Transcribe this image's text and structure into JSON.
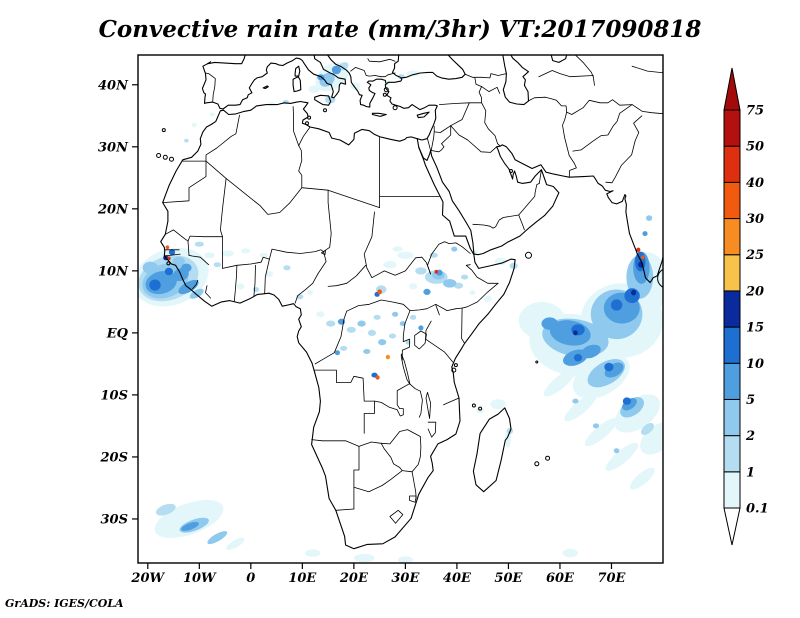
{
  "title": "Convective rain rate (mm/3hr) VT:2017090818",
  "credit": "GrADS: IGES/COLA",
  "chart_data": {
    "type": "heatmap",
    "title": "Convective rain rate (mm/3hr) VT:2017090818",
    "variable": "Convective rain rate",
    "units": "mm/3hr",
    "valid_time": "2017090818",
    "grid": "off",
    "legend_position": "right colorbar",
    "x_axis": {
      "tick_labels": [
        "20W",
        "10W",
        "0",
        "10E",
        "20E",
        "30E",
        "40E",
        "50E",
        "60E",
        "70E"
      ],
      "tick_lons": [
        -20,
        -10,
        0,
        10,
        20,
        30,
        40,
        50,
        60,
        70
      ],
      "lon_range": [
        -21.9,
        80.0
      ]
    },
    "y_axis": {
      "tick_labels": [
        "40N",
        "30N",
        "20N",
        "10N",
        "EQ",
        "10S",
        "20S",
        "30S"
      ],
      "tick_lats": [
        40,
        30,
        20,
        10,
        0,
        -10,
        -20,
        -30
      ],
      "lat_range": [
        -37.1,
        44.8
      ]
    },
    "colorbar": {
      "levels": [
        0.1,
        1,
        2,
        5,
        10,
        15,
        20,
        25,
        30,
        40,
        50,
        75
      ],
      "segment_colors": [
        "#E3F7FA",
        "#B4DDF2",
        "#8FC9EE",
        "#4F9FE0",
        "#1E6FD2",
        "#0A2B9D",
        "#F7C34A",
        "#F78C22",
        "#F25A10",
        "#DE2F10",
        "#B51010"
      ],
      "arrow_top_color": "#A40A0A",
      "arrow_bottom_color": "#FFFFFF"
    },
    "rain_features": [
      {
        "region": "Atlantic off Senegal/Guinea coast",
        "approx": "20W-10W, 5N-13N",
        "max_level": "30-50 specks near Senegal coast, core 5-15"
      },
      {
        "region": "Sahel scattered cells",
        "approx": "12W-8E, 7N-15N",
        "max_level": "1-5"
      },
      {
        "region": "Southern Italy / Adriatic / Ionian",
        "approx": "12E-20E, 37N-43N",
        "max_level": "2-5"
      },
      {
        "region": "South Sudan / Ethiopia",
        "approx": "24E-41E, 6N-13N",
        "max_level": "5-40 (isolated 40 speck ~36E,10N and ~25E,6.5N)"
      },
      {
        "region": "Congo basin scattered",
        "approx": "13E-33E, 4N-8S",
        "max_level": "2-30 isolated specks"
      },
      {
        "region": "Arabian Sea / SW Indian monsoon area incl. India west coast",
        "approx": "50E-80E, 12S-15N",
        "max_level": "10-15 cores, 30-40 speck near 75E,13N"
      },
      {
        "region": "SE Indian Ocean diagonal bands",
        "approx": "55E-80E, 5S-25S",
        "max_level": "0.1-5"
      },
      {
        "region": "South Atlantic streak",
        "approx": "18W-2W, 27S-35S",
        "max_level": "2-5 core"
      },
      {
        "region": "Black Sea / Bosphorus specks",
        "approx": "26E-32E, 40N-42N",
        "max_level": "1"
      }
    ],
    "rain_cells_format": "[lon, lat, rx_deg, ry_deg, rotation_deg, level_index] where level_index maps to colorbar.segment_colors (0 = 0.1-1 ... 10 = 50-75)",
    "rain_cells": [
      [
        -15.5,
        9.0,
        7.5,
        4.5,
        -20,
        0
      ],
      [
        -16.0,
        8.8,
        6.0,
        3.5,
        -20,
        1
      ],
      [
        -16.6,
        8.4,
        4.6,
        2.7,
        -20,
        2
      ],
      [
        -17.4,
        8.1,
        3.1,
        1.8,
        -15,
        3
      ],
      [
        -13.6,
        9.4,
        1.6,
        1.0,
        -20,
        3
      ],
      [
        -18.6,
        7.7,
        1.1,
        0.9,
        0,
        4
      ],
      [
        -15.9,
        9.9,
        0.8,
        0.6,
        0,
        4
      ],
      [
        -12.1,
        7.4,
        2.2,
        0.8,
        -30,
        3
      ],
      [
        -10.5,
        6.3,
        1.5,
        0.6,
        -30,
        2
      ],
      [
        -19.5,
        10.5,
        1.5,
        1.0,
        0,
        2
      ],
      [
        -14.0,
        11.5,
        1.2,
        0.8,
        0,
        2
      ],
      [
        -12.5,
        10.5,
        1.0,
        0.7,
        0,
        3
      ],
      [
        -16.2,
        13.8,
        0.35,
        0.3,
        0,
        8
      ],
      [
        -15.9,
        12.0,
        0.35,
        0.3,
        0,
        9
      ],
      [
        -16.5,
        12.1,
        0.5,
        0.4,
        0,
        5
      ],
      [
        -15.3,
        13.0,
        0.6,
        0.5,
        0,
        4
      ],
      [
        -8.0,
        12.5,
        1.0,
        0.5,
        0,
        0
      ],
      [
        -4.5,
        12.8,
        1.2,
        0.5,
        0,
        0
      ],
      [
        -1.0,
        13.2,
        0.9,
        0.4,
        0,
        0
      ],
      [
        2.5,
        12.5,
        0.8,
        0.4,
        0,
        0
      ],
      [
        -10.0,
        14.3,
        0.9,
        0.4,
        0,
        1
      ],
      [
        -6.5,
        11.0,
        0.7,
        0.4,
        0,
        1
      ],
      [
        3.5,
        9.5,
        0.8,
        0.5,
        0,
        0
      ],
      [
        7.0,
        10.5,
        0.7,
        0.4,
        0,
        1
      ],
      [
        -2.0,
        7.5,
        0.8,
        0.5,
        0,
        0
      ],
      [
        1.0,
        7.0,
        0.6,
        0.4,
        0,
        1
      ],
      [
        -11.0,
        33.5,
        0.5,
        0.35,
        0,
        0
      ],
      [
        -12.5,
        31.0,
        0.45,
        0.3,
        0,
        1
      ],
      [
        -7.5,
        35.2,
        0.5,
        0.3,
        0,
        0
      ],
      [
        15.8,
        41.3,
        3.6,
        2.0,
        -35,
        0
      ],
      [
        14.8,
        40.8,
        1.6,
        1.0,
        -35,
        2
      ],
      [
        16.6,
        42.4,
        0.9,
        0.7,
        0,
        3
      ],
      [
        13.6,
        41.2,
        0.7,
        0.5,
        0,
        3
      ],
      [
        15.4,
        37.6,
        1.0,
        0.6,
        0,
        1
      ],
      [
        12.3,
        39.3,
        1.1,
        0.6,
        0,
        0
      ],
      [
        20.3,
        39.8,
        1.0,
        0.6,
        0,
        0
      ],
      [
        18.0,
        43.0,
        1.0,
        0.6,
        -30,
        1
      ],
      [
        29.2,
        41.3,
        0.7,
        0.4,
        0,
        1
      ],
      [
        31.5,
        41.8,
        1.3,
        0.5,
        0,
        0
      ],
      [
        26.5,
        40.3,
        0.6,
        0.4,
        0,
        0
      ],
      [
        6.8,
        37.2,
        0.6,
        0.35,
        0,
        1
      ],
      [
        4.0,
        36.9,
        0.7,
        0.3,
        0,
        0
      ],
      [
        27.0,
        11.0,
        1.3,
        0.6,
        0,
        0
      ],
      [
        30.0,
        12.5,
        1.6,
        0.6,
        0,
        0
      ],
      [
        33.0,
        10.0,
        1.1,
        0.6,
        0,
        1
      ],
      [
        36.0,
        9.0,
        2.2,
        1.1,
        0,
        1
      ],
      [
        36.4,
        9.3,
        1.2,
        0.7,
        0,
        2
      ],
      [
        38.6,
        8.0,
        1.3,
        0.7,
        0,
        2
      ],
      [
        40.3,
        7.6,
        0.9,
        0.5,
        0,
        1
      ],
      [
        36.6,
        9.7,
        0.6,
        0.5,
        0,
        3
      ],
      [
        34.2,
        6.6,
        0.7,
        0.5,
        0,
        3
      ],
      [
        31.5,
        7.5,
        0.8,
        0.5,
        0,
        0
      ],
      [
        25.3,
        7.0,
        1.0,
        0.7,
        0,
        1
      ],
      [
        25.0,
        6.6,
        0.45,
        0.4,
        0,
        8
      ],
      [
        24.5,
        6.2,
        0.5,
        0.4,
        0,
        4
      ],
      [
        28.5,
        13.5,
        1.0,
        0.4,
        0,
        0
      ],
      [
        35.5,
        12.5,
        0.8,
        0.4,
        0,
        1
      ],
      [
        39.5,
        13.5,
        0.6,
        0.4,
        0,
        2
      ],
      [
        41.5,
        9.0,
        0.7,
        0.4,
        0,
        1
      ],
      [
        43.0,
        6.5,
        0.6,
        0.4,
        0,
        0
      ],
      [
        36.0,
        9.85,
        0.35,
        0.3,
        0,
        9
      ],
      [
        13.5,
        3.0,
        0.8,
        0.5,
        0,
        0
      ],
      [
        15.5,
        1.5,
        0.9,
        0.5,
        0,
        1
      ],
      [
        17.6,
        1.8,
        0.7,
        0.5,
        0,
        3
      ],
      [
        19.5,
        0.5,
        0.9,
        0.5,
        0,
        1
      ],
      [
        21.5,
        1.5,
        0.8,
        0.5,
        0,
        2
      ],
      [
        23.5,
        0.0,
        0.8,
        0.5,
        0,
        1
      ],
      [
        25.5,
        -1.5,
        0.8,
        0.5,
        0,
        2
      ],
      [
        27.5,
        -0.5,
        0.7,
        0.4,
        0,
        1
      ],
      [
        24.5,
        2.5,
        0.7,
        0.4,
        0,
        1
      ],
      [
        28.0,
        3.0,
        0.6,
        0.4,
        0,
        2
      ],
      [
        22.5,
        -3.0,
        0.7,
        0.4,
        0,
        2
      ],
      [
        26.6,
        -3.9,
        0.4,
        0.35,
        0,
        7
      ],
      [
        24.6,
        -7.2,
        0.4,
        0.35,
        0,
        8
      ],
      [
        24.0,
        -6.8,
        0.6,
        0.4,
        0,
        4
      ],
      [
        18.0,
        -2.5,
        0.7,
        0.4,
        0,
        1
      ],
      [
        16.8,
        -3.2,
        0.5,
        0.4,
        0,
        3
      ],
      [
        29.5,
        1.5,
        0.6,
        0.4,
        0,
        2
      ],
      [
        31.5,
        2.5,
        0.6,
        0.4,
        0,
        1
      ],
      [
        33.0,
        0.8,
        0.5,
        0.4,
        0,
        3
      ],
      [
        30.5,
        -1.5,
        0.5,
        0.4,
        0,
        1
      ],
      [
        9.5,
        5.8,
        0.7,
        0.4,
        0,
        1
      ],
      [
        11.5,
        6.5,
        0.6,
        0.4,
        0,
        0
      ],
      [
        56.5,
        2.0,
        4.5,
        3.0,
        0,
        0
      ],
      [
        63.0,
        -2.0,
        9.0,
        5.0,
        10,
        0
      ],
      [
        72.0,
        2.0,
        8.0,
        6.0,
        0,
        0
      ],
      [
        77.0,
        8.0,
        4.0,
        5.0,
        0,
        0
      ],
      [
        68.0,
        -7.0,
        6.0,
        3.0,
        -30,
        0
      ],
      [
        63.0,
        -0.8,
        6.5,
        3.0,
        10,
        2
      ],
      [
        71.0,
        3.0,
        5.0,
        4.0,
        0,
        2
      ],
      [
        75.5,
        9.0,
        2.6,
        3.5,
        0,
        2
      ],
      [
        69.0,
        -6.5,
        4.0,
        1.8,
        -30,
        2
      ],
      [
        62.0,
        0.0,
        4.0,
        2.0,
        10,
        3
      ],
      [
        72.0,
        4.0,
        3.5,
        2.5,
        0,
        3
      ],
      [
        75.8,
        10.5,
        1.6,
        2.6,
        0,
        3
      ],
      [
        66.0,
        -3.0,
        2.0,
        1.0,
        -20,
        3
      ],
      [
        70.5,
        -6.0,
        2.0,
        1.0,
        -30,
        3
      ],
      [
        58.0,
        1.5,
        1.6,
        1.0,
        0,
        3
      ],
      [
        63.5,
        0.5,
        1.3,
        0.9,
        0,
        4
      ],
      [
        74.0,
        6.0,
        1.5,
        1.2,
        0,
        4
      ],
      [
        75.6,
        11.5,
        1.0,
        1.6,
        0,
        4
      ],
      [
        71.0,
        4.5,
        1.1,
        0.9,
        0,
        4
      ],
      [
        69.5,
        -5.5,
        0.9,
        0.7,
        0,
        4
      ],
      [
        75.7,
        11.0,
        0.5,
        0.5,
        0,
        5
      ],
      [
        63.0,
        0.0,
        0.45,
        0.4,
        0,
        5
      ],
      [
        74.3,
        6.5,
        0.5,
        0.45,
        0,
        5
      ],
      [
        75.2,
        13.4,
        0.4,
        0.35,
        0,
        9
      ],
      [
        76.1,
        12.2,
        0.35,
        0.3,
        0,
        8
      ],
      [
        77.3,
        18.5,
        0.6,
        0.45,
        0,
        2
      ],
      [
        76.5,
        16.0,
        0.5,
        0.4,
        0,
        3
      ],
      [
        73.5,
        -11.5,
        1.6,
        0.8,
        -35,
        3
      ],
      [
        74.0,
        -12.0,
        2.6,
        1.3,
        -35,
        2
      ],
      [
        75.0,
        -13.0,
        5.0,
        2.4,
        -35,
        0
      ],
      [
        73.0,
        -11.0,
        0.8,
        0.6,
        0,
        4
      ],
      [
        79.0,
        -17.0,
        4.0,
        2.0,
        -40,
        0
      ],
      [
        77.0,
        -15.5,
        1.5,
        0.7,
        -40,
        1
      ],
      [
        48.5,
        11.5,
        1.2,
        0.6,
        0,
        0
      ],
      [
        51.0,
        10.8,
        0.8,
        0.5,
        0,
        1
      ],
      [
        46.0,
        5.5,
        0.8,
        0.5,
        0,
        0
      ],
      [
        43.5,
        13.0,
        0.6,
        0.4,
        0,
        0
      ],
      [
        60.0,
        -8.0,
        4.0,
        1.0,
        -40,
        0
      ],
      [
        64.0,
        -12.0,
        4.0,
        1.0,
        -40,
        0
      ],
      [
        68.0,
        -16.0,
        4.0,
        1.0,
        -40,
        0
      ],
      [
        72.0,
        -20.0,
        4.0,
        1.0,
        -40,
        0
      ],
      [
        76.0,
        -23.5,
        3.0,
        0.9,
        -40,
        0
      ],
      [
        63.0,
        -11.0,
        0.6,
        0.4,
        0,
        2
      ],
      [
        67.0,
        -15.0,
        0.6,
        0.4,
        0,
        2
      ],
      [
        71.0,
        -19.0,
        0.55,
        0.4,
        0,
        2
      ],
      [
        63.0,
        -4.0,
        2.5,
        1.2,
        -20,
        3
      ],
      [
        63.5,
        -4.0,
        0.8,
        0.6,
        0,
        4
      ],
      [
        48.0,
        -11.5,
        1.5,
        0.8,
        0,
        0
      ],
      [
        50.3,
        -15.8,
        0.6,
        0.5,
        0,
        1
      ],
      [
        49.9,
        -17.0,
        0.6,
        1.5,
        0,
        0
      ],
      [
        44.5,
        -12.5,
        0.8,
        0.5,
        0,
        0
      ],
      [
        -12.0,
        -30.0,
        7.0,
        2.5,
        -20,
        0
      ],
      [
        -11.0,
        -31.0,
        3.0,
        0.9,
        -20,
        2
      ],
      [
        -11.8,
        -31.2,
        1.8,
        0.55,
        -20,
        3
      ],
      [
        -6.5,
        -33.0,
        2.2,
        0.6,
        -30,
        2
      ],
      [
        -3.0,
        -34.0,
        2.0,
        0.6,
        -30,
        0
      ],
      [
        -16.5,
        -28.5,
        2.0,
        0.8,
        -20,
        1
      ],
      [
        22.0,
        -36.3,
        2.0,
        0.7,
        0,
        0
      ],
      [
        30.0,
        -36.6,
        1.5,
        0.6,
        0,
        0
      ],
      [
        62.0,
        -35.5,
        1.5,
        0.7,
        0,
        0
      ],
      [
        12.0,
        -35.5,
        1.5,
        0.6,
        0,
        0
      ]
    ]
  }
}
